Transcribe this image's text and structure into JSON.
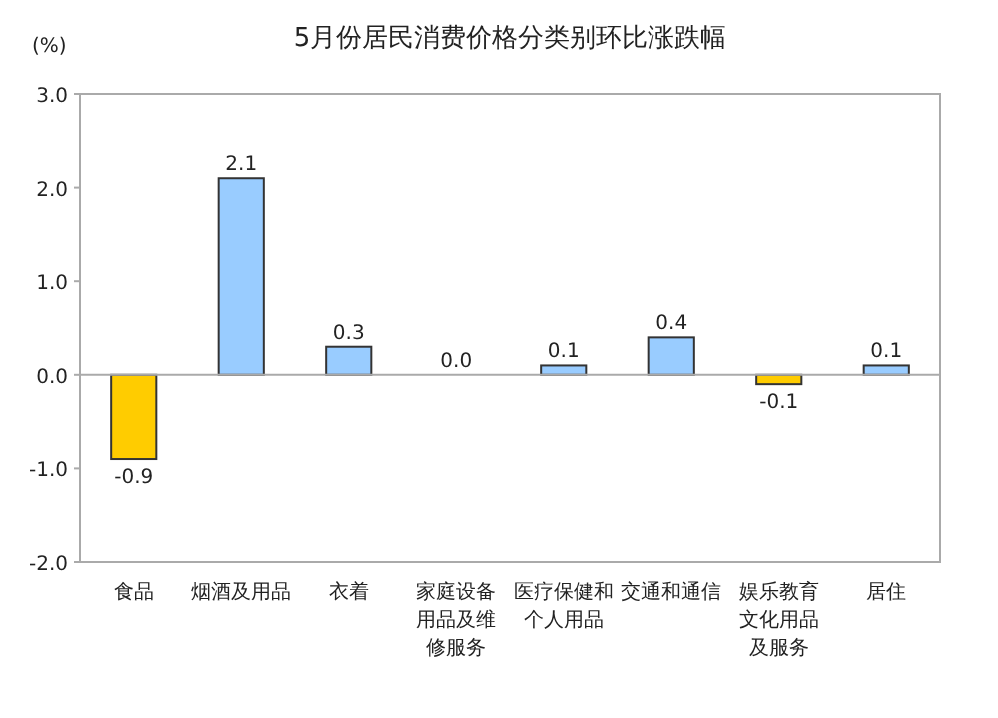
{
  "chart_data": {
    "type": "bar",
    "title": "5月份居民消费价格分类别环比涨跌幅",
    "ylabel": "(%)",
    "categories": [
      "食品",
      "烟酒及用品",
      "衣着",
      "家庭设备用品及维修服务",
      "医疗保健和个人用品",
      "交通和通信",
      "娱乐教育文化用品及服务",
      "居住"
    ],
    "values": [
      -0.9,
      2.1,
      0.3,
      0.0,
      0.1,
      0.4,
      -0.1,
      0.1
    ],
    "colors": [
      "#ffcc00",
      "#99ccff",
      "#99ccff",
      "#99ccff",
      "#99ccff",
      "#99ccff",
      "#ffcc00",
      "#99ccff"
    ],
    "value_labels": [
      "-0.9",
      "2.1",
      "0.3",
      "0.0",
      "0.1",
      "0.4",
      "-0.1",
      "0.1"
    ],
    "ylim": [
      -2,
      3
    ],
    "yticks": [
      {
        "value": 3,
        "label": "3.0"
      },
      {
        "value": 2,
        "label": "2.0"
      },
      {
        "value": 1,
        "label": "1.0"
      },
      {
        "value": 0,
        "label": "0.0"
      },
      {
        "value": -1,
        "label": "-1.0"
      },
      {
        "value": -2,
        "label": "-2.0"
      }
    ],
    "ref_lines": [
      {
        "axis": "y",
        "value": 0,
        "color": "#aaaaaa"
      }
    ]
  }
}
